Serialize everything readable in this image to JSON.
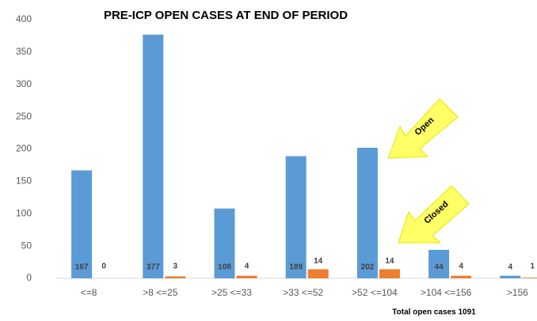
{
  "chart_data": {
    "type": "bar",
    "title": "PRE-ICP OPEN CASES AT END OF PERIOD",
    "categories": [
      "<=8",
      ">8 <=25",
      ">25 <=33",
      ">33 <=52",
      ">52 <=104",
      ">104 <=156",
      ">156"
    ],
    "series": [
      {
        "name": "Open",
        "color": "#5b9bd5",
        "values": [
          167,
          377,
          108,
          189,
          202,
          44,
          4
        ]
      },
      {
        "name": "Closed",
        "color": "#ed7d31",
        "values": [
          0,
          3,
          4,
          14,
          14,
          4,
          1
        ]
      }
    ],
    "ylim": [
      0,
      400
    ],
    "yticks": [
      0,
      50,
      100,
      150,
      200,
      250,
      300,
      350,
      400
    ],
    "annotation": "Total open cases  1091"
  }
}
